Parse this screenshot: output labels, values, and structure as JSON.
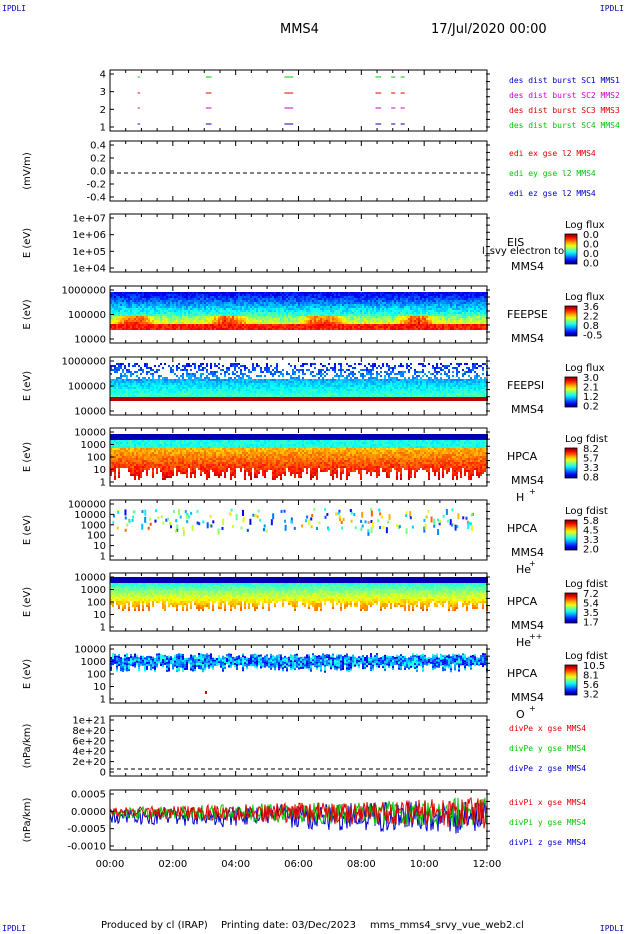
{
  "header": {
    "mission": "MMS4",
    "datetime": "17/Jul/2020 00:00",
    "corner_label": "IPDLI"
  },
  "footer": {
    "produced_by": "Produced by cl (IRAP)",
    "printing_date": "Printing date: 03/Dec/2023",
    "filename": "mms_mms4_srvy_vue_web2.cl"
  },
  "chart_data": {
    "type": "heatmap",
    "time_ticks": [
      "00:00",
      "02:00",
      "04:00",
      "06:00",
      "08:00",
      "10:00",
      "12:00"
    ],
    "colors": {
      "mms1": "#0000c8",
      "mms2": "#d000d0",
      "mms3": "#e00000",
      "mms4": "#00c800",
      "x": "#e00000",
      "y": "#00c800",
      "z": "#0000c8"
    },
    "panels": [
      {
        "id": "burst",
        "type": "event",
        "ylabel": "",
        "yticks": [
          "4",
          "3",
          "2",
          "1"
        ],
        "legend": [
          {
            "text": "des dist burst SC1 MMS1",
            "color": "#0000c8"
          },
          {
            "text": "des dist burst SC2 MMS2",
            "color": "#d000d0"
          },
          {
            "text": "des dist burst SC3 MMS3",
            "color": "#e00000"
          },
          {
            "text": "des dist burst SC4 MMS4",
            "color": "#00c800"
          }
        ],
        "intervals_hours": [
          [
            0.88,
            0.92
          ],
          [
            3.05,
            3.2
          ],
          [
            5.55,
            5.8
          ],
          [
            8.45,
            8.6
          ],
          [
            8.95,
            9.05
          ],
          [
            9.25,
            9.35
          ]
        ]
      },
      {
        "id": "edi",
        "type": "line",
        "ylabel": "(mV/m)",
        "yticks": [
          "0.4",
          "0.2",
          "0.0",
          "-0.2",
          "-0.4"
        ],
        "ylim": [
          -0.4,
          0.4
        ],
        "legend": [
          {
            "text": "edi ex gse l2 MMS4",
            "color": "#e00000"
          },
          {
            "text": "edi ey gse l2 MMS4",
            "color": "#00c800"
          },
          {
            "text": "edi ez gse l2 MMS4",
            "color": "#0000c8"
          }
        ]
      },
      {
        "id": "eis",
        "type": "heatmap",
        "ylabel": "E (eV)",
        "yticks": [
          "1e+07",
          "1e+06",
          "1e+05",
          "1e+04"
        ],
        "inst": "EIS",
        "sc": "MMS4",
        "overlay": "l_svy electron to",
        "cbar_title": "Log flux",
        "cbar_ticks": [
          "0.0",
          "0.0",
          "0.0",
          "0.0"
        ]
      },
      {
        "id": "feepse",
        "type": "heatmap",
        "ylabel": "E (eV)",
        "yticks": [
          "1000000",
          "100000",
          "10000"
        ],
        "inst": "FEEPSE",
        "sc": "MMS4",
        "cbar_title": "Log flux",
        "cbar_ticks": [
          "3.6",
          "2.2",
          "0.8",
          "-0.5"
        ]
      },
      {
        "id": "feepsi",
        "type": "heatmap",
        "ylabel": "E (eV)",
        "yticks": [
          "1000000",
          "100000",
          "10000"
        ],
        "inst": "FEEPSI",
        "sc": "MMS4",
        "cbar_title": "Log flux",
        "cbar_ticks": [
          "3.0",
          "2.1",
          "1.2",
          "0.2"
        ]
      },
      {
        "id": "hpca_h",
        "type": "heatmap",
        "ylabel": "E (eV)",
        "yticks": [
          "10000",
          "1000",
          "100",
          "10",
          "1"
        ],
        "inst": "HPCA",
        "sc": "MMS4",
        "species": "H",
        "charge": "+",
        "cbar_title": "Log fdist",
        "cbar_ticks": [
          "8.2",
          "5.7",
          "3.3",
          "0.8"
        ]
      },
      {
        "id": "hpca_he1",
        "type": "heatmap",
        "ylabel": "E (eV)",
        "yticks": [
          "100000",
          "10000",
          "1000",
          "100",
          "10",
          "1"
        ],
        "inst": "HPCA",
        "sc": "MMS4",
        "species": "He",
        "charge": "+",
        "cbar_title": "Log fdist",
        "cbar_ticks": [
          "5.8",
          "4.5",
          "3.3",
          "2.0"
        ]
      },
      {
        "id": "hpca_he2",
        "type": "heatmap",
        "ylabel": "E (eV)",
        "yticks": [
          "10000",
          "1000",
          "100",
          "10",
          "1"
        ],
        "inst": "HPCA",
        "sc": "MMS4",
        "species": "He",
        "charge": "++",
        "cbar_title": "Log fdist",
        "cbar_ticks": [
          "7.2",
          "5.4",
          "3.5",
          "1.7"
        ]
      },
      {
        "id": "hpca_o",
        "type": "heatmap",
        "ylabel": "E (eV)",
        "yticks": [
          "10000",
          "1000",
          "100",
          "10",
          "1"
        ],
        "inst": "HPCA",
        "sc": "MMS4",
        "species": "O",
        "charge": "+",
        "cbar_title": "Log fdist",
        "cbar_ticks": [
          "10.5",
          "8.1",
          "5.6",
          "3.2"
        ]
      },
      {
        "id": "divpe",
        "type": "line",
        "ylabel": "(nPa/km)",
        "yticks": [
          "1e+21",
          "8e+20",
          "6e+20",
          "4e+20",
          "2e+20",
          "0"
        ],
        "ylim": [
          0,
          1.1e+21
        ],
        "legend": [
          {
            "text": "divPe x gse MMS4",
            "color": "#e00000"
          },
          {
            "text": "divPe y gse MMS4",
            "color": "#00c800"
          },
          {
            "text": "divPe z gse MMS4",
            "color": "#0000c8"
          }
        ]
      },
      {
        "id": "divpi",
        "type": "line",
        "ylabel": "(nPa/km)",
        "yticks": [
          "0.0005",
          "0.0000",
          "-0.0005",
          "-0.0010"
        ],
        "ylim": [
          -0.0011,
          0.0007
        ],
        "legend": [
          {
            "text": "divPi x gse MMS4",
            "color": "#e00000"
          },
          {
            "text": "divPi y gse MMS4",
            "color": "#00c800"
          },
          {
            "text": "divPi z gse MMS4",
            "color": "#0000c8"
          }
        ]
      }
    ]
  }
}
